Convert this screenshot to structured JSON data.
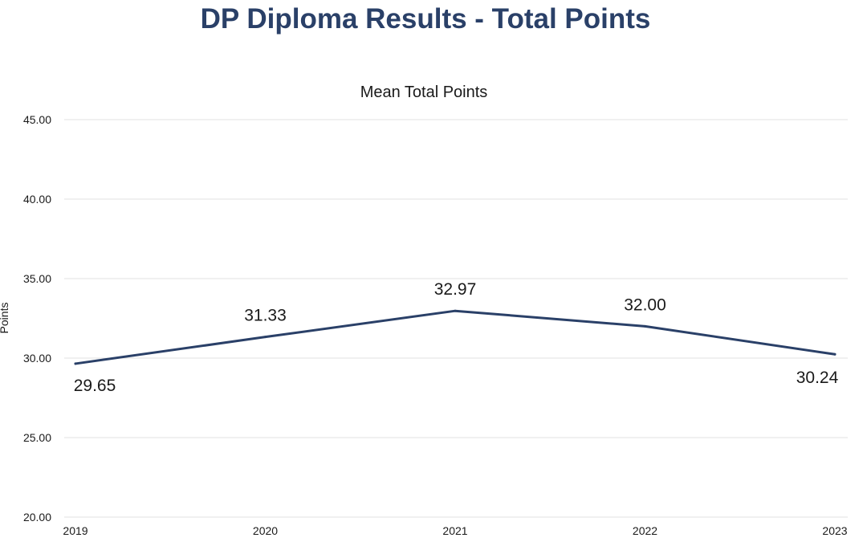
{
  "page": {
    "title": "DP Diploma Results - Total Points"
  },
  "chart_data": {
    "type": "line",
    "title": "Mean Total Points",
    "xlabel": "",
    "ylabel": "Points",
    "categories": [
      "2019",
      "2020",
      "2021",
      "2022",
      "2023"
    ],
    "series": [
      {
        "values": [
          29.65,
          31.33,
          32.97,
          32.0,
          30.24
        ],
        "color": "#2a4068"
      }
    ],
    "data_labels": [
      "29.65",
      "31.33",
      "32.97",
      "32.00",
      "30.24"
    ],
    "ylim": [
      20,
      45
    ],
    "yticks": [
      "20.00",
      "25.00",
      "30.00",
      "35.00",
      "40.00",
      "45.00"
    ],
    "grid": true,
    "legend": "none"
  }
}
